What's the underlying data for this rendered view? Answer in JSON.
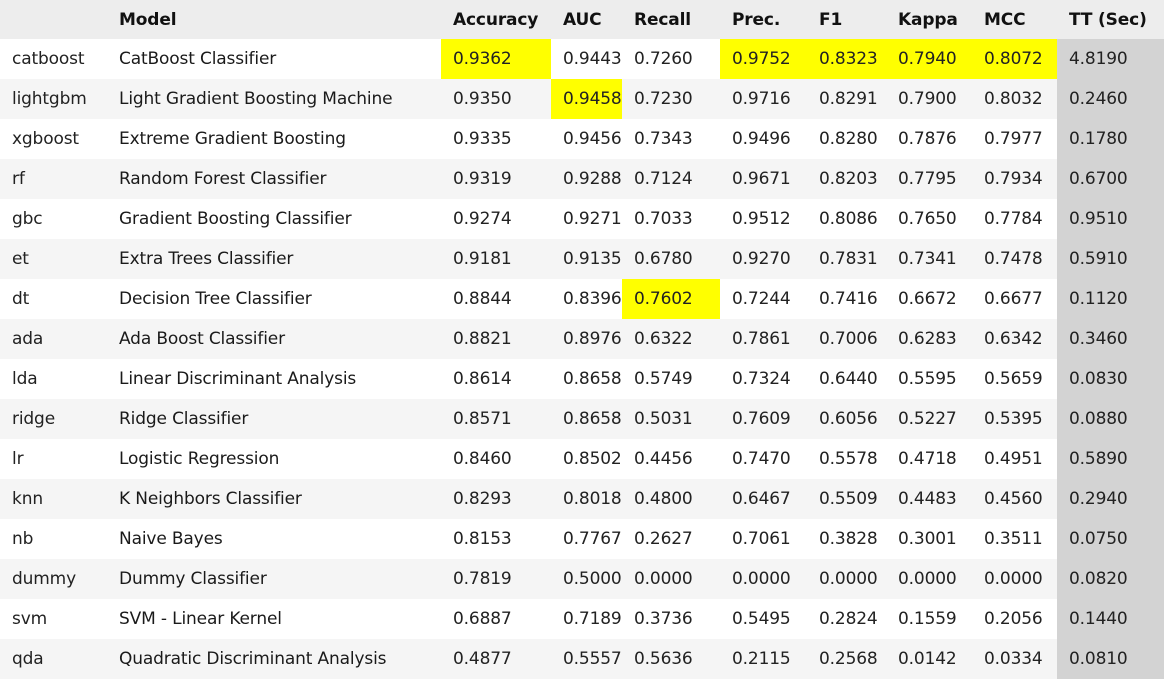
{
  "colors": {
    "header_bg": "#ededed",
    "row_even": "#ffffff",
    "row_odd": "#f5f5f5",
    "highlight_max": "#ffff00",
    "tt_column_bg": "#d3d3d3"
  },
  "columns": [
    "",
    "Model",
    "Accuracy",
    "AUC",
    "Recall",
    "Prec.",
    "F1",
    "Kappa",
    "MCC",
    "TT (Sec)"
  ],
  "rows": [
    {
      "key": "catboost",
      "model": "CatBoost Classifier",
      "values": [
        "0.9362",
        "0.9443",
        "0.7260",
        "0.9752",
        "0.8323",
        "0.7940",
        "0.8072",
        "4.8190"
      ],
      "highlight": [
        true,
        false,
        false,
        true,
        true,
        true,
        true,
        false
      ]
    },
    {
      "key": "lightgbm",
      "model": "Light Gradient Boosting Machine",
      "values": [
        "0.9350",
        "0.9458",
        "0.7230",
        "0.9716",
        "0.8291",
        "0.7900",
        "0.8032",
        "0.2460"
      ],
      "highlight": [
        false,
        true,
        false,
        false,
        false,
        false,
        false,
        false
      ]
    },
    {
      "key": "xgboost",
      "model": "Extreme Gradient Boosting",
      "values": [
        "0.9335",
        "0.9456",
        "0.7343",
        "0.9496",
        "0.8280",
        "0.7876",
        "0.7977",
        "0.1780"
      ],
      "highlight": [
        false,
        false,
        false,
        false,
        false,
        false,
        false,
        false
      ]
    },
    {
      "key": "rf",
      "model": "Random Forest Classifier",
      "values": [
        "0.9319",
        "0.9288",
        "0.7124",
        "0.9671",
        "0.8203",
        "0.7795",
        "0.7934",
        "0.6700"
      ],
      "highlight": [
        false,
        false,
        false,
        false,
        false,
        false,
        false,
        false
      ]
    },
    {
      "key": "gbc",
      "model": "Gradient Boosting Classifier",
      "values": [
        "0.9274",
        "0.9271",
        "0.7033",
        "0.9512",
        "0.8086",
        "0.7650",
        "0.7784",
        "0.9510"
      ],
      "highlight": [
        false,
        false,
        false,
        false,
        false,
        false,
        false,
        false
      ]
    },
    {
      "key": "et",
      "model": "Extra Trees Classifier",
      "values": [
        "0.9181",
        "0.9135",
        "0.6780",
        "0.9270",
        "0.7831",
        "0.7341",
        "0.7478",
        "0.5910"
      ],
      "highlight": [
        false,
        false,
        false,
        false,
        false,
        false,
        false,
        false
      ]
    },
    {
      "key": "dt",
      "model": "Decision Tree Classifier",
      "values": [
        "0.8844",
        "0.8396",
        "0.7602",
        "0.7244",
        "0.7416",
        "0.6672",
        "0.6677",
        "0.1120"
      ],
      "highlight": [
        false,
        false,
        true,
        false,
        false,
        false,
        false,
        false
      ]
    },
    {
      "key": "ada",
      "model": "Ada Boost Classifier",
      "values": [
        "0.8821",
        "0.8976",
        "0.6322",
        "0.7861",
        "0.7006",
        "0.6283",
        "0.6342",
        "0.3460"
      ],
      "highlight": [
        false,
        false,
        false,
        false,
        false,
        false,
        false,
        false
      ]
    },
    {
      "key": "lda",
      "model": "Linear Discriminant Analysis",
      "values": [
        "0.8614",
        "0.8658",
        "0.5749",
        "0.7324",
        "0.6440",
        "0.5595",
        "0.5659",
        "0.0830"
      ],
      "highlight": [
        false,
        false,
        false,
        false,
        false,
        false,
        false,
        false
      ]
    },
    {
      "key": "ridge",
      "model": "Ridge Classifier",
      "values": [
        "0.8571",
        "0.8658",
        "0.5031",
        "0.7609",
        "0.6056",
        "0.5227",
        "0.5395",
        "0.0880"
      ],
      "highlight": [
        false,
        false,
        false,
        false,
        false,
        false,
        false,
        false
      ]
    },
    {
      "key": "lr",
      "model": "Logistic Regression",
      "values": [
        "0.8460",
        "0.8502",
        "0.4456",
        "0.7470",
        "0.5578",
        "0.4718",
        "0.4951",
        "0.5890"
      ],
      "highlight": [
        false,
        false,
        false,
        false,
        false,
        false,
        false,
        false
      ]
    },
    {
      "key": "knn",
      "model": "K Neighbors Classifier",
      "values": [
        "0.8293",
        "0.8018",
        "0.4800",
        "0.6467",
        "0.5509",
        "0.4483",
        "0.4560",
        "0.2940"
      ],
      "highlight": [
        false,
        false,
        false,
        false,
        false,
        false,
        false,
        false
      ]
    },
    {
      "key": "nb",
      "model": "Naive Bayes",
      "values": [
        "0.8153",
        "0.7767",
        "0.2627",
        "0.7061",
        "0.3828",
        "0.3001",
        "0.3511",
        "0.0750"
      ],
      "highlight": [
        false,
        false,
        false,
        false,
        false,
        false,
        false,
        false
      ]
    },
    {
      "key": "dummy",
      "model": "Dummy Classifier",
      "values": [
        "0.7819",
        "0.5000",
        "0.0000",
        "0.0000",
        "0.0000",
        "0.0000",
        "0.0000",
        "0.0820"
      ],
      "highlight": [
        false,
        false,
        false,
        false,
        false,
        false,
        false,
        false
      ]
    },
    {
      "key": "svm",
      "model": "SVM - Linear Kernel",
      "values": [
        "0.6887",
        "0.7189",
        "0.3736",
        "0.5495",
        "0.2824",
        "0.1559",
        "0.2056",
        "0.1440"
      ],
      "highlight": [
        false,
        false,
        false,
        false,
        false,
        false,
        false,
        false
      ]
    },
    {
      "key": "qda",
      "model": "Quadratic Discriminant Analysis",
      "values": [
        "0.4877",
        "0.5557",
        "0.5636",
        "0.2115",
        "0.2568",
        "0.0142",
        "0.0334",
        "0.0810"
      ],
      "highlight": [
        false,
        false,
        false,
        false,
        false,
        false,
        false,
        false
      ]
    }
  ]
}
